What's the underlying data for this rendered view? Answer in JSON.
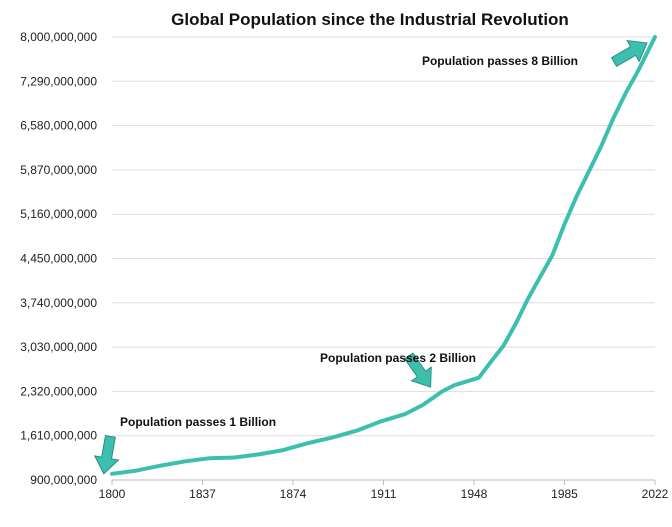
{
  "chart_data": {
    "type": "line",
    "title": "Global Population since the Industrial Revolution",
    "xlabel": "",
    "ylabel": "",
    "x_ticks": [
      "1800",
      "1837",
      "1874",
      "1911",
      "1948",
      "1985",
      "2022"
    ],
    "y_ticks": [
      "900,000,000",
      "1,610,000,000",
      "2,320,000,000",
      "3,030,000,000",
      "3,740,000,000",
      "4,450,000,000",
      "5,160,000,000",
      "5,870,000,000",
      "6,580,000,000",
      "7,290,000,000",
      "8,000,000,000"
    ],
    "xlim": [
      1800,
      2022
    ],
    "ylim": [
      900000000,
      8000000000
    ],
    "grid": true,
    "line_color": "#3dbfb0",
    "series": [
      {
        "x": [
          1800,
          1810,
          1820,
          1830,
          1840,
          1850,
          1860,
          1870,
          1880,
          1890,
          1900,
          1910,
          1920,
          1927,
          1935,
          1940,
          1950,
          1955,
          1960,
          1965,
          1970,
          1975,
          1980,
          1985,
          1990,
          1995,
          2000,
          2005,
          2010,
          2015,
          2022
        ],
        "y": [
          1000000000,
          1050000000,
          1130000000,
          1200000000,
          1250000000,
          1260000000,
          1310000000,
          1380000000,
          1490000000,
          1580000000,
          1690000000,
          1840000000,
          1960000000,
          2100000000,
          2320000000,
          2420000000,
          2540000000,
          2800000000,
          3050000000,
          3400000000,
          3800000000,
          4150000000,
          4500000000,
          5000000000,
          5450000000,
          5850000000,
          6250000000,
          6700000000,
          7100000000,
          7450000000,
          8000000000
        ]
      }
    ],
    "annotations": [
      {
        "text": "Population passes 1 Billion",
        "x": 1804,
        "y": 1000000000
      },
      {
        "text": "Population passes 2 Billion",
        "x": 1927,
        "y": 2100000000
      },
      {
        "text": "Population passes 8 Billion",
        "x": 2022,
        "y": 8000000000
      }
    ],
    "arrow_color": "#3dbfb0"
  }
}
